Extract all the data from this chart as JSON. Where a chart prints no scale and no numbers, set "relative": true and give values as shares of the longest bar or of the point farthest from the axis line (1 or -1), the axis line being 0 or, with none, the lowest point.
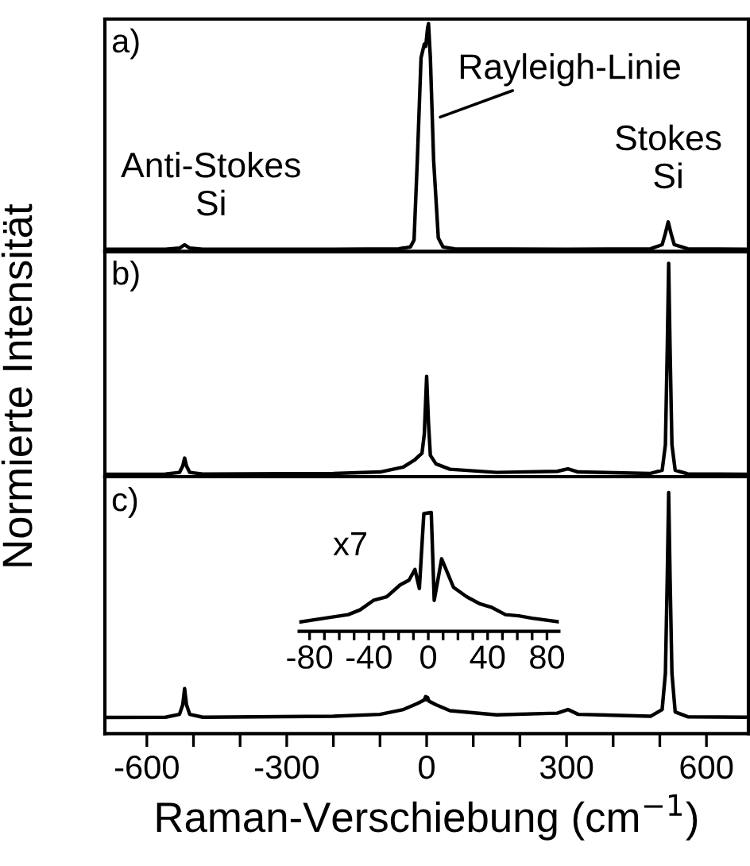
{
  "chart_data": [
    {
      "type": "line",
      "relative": true,
      "xlim": [
        -690,
        690
      ],
      "tick_labels": false,
      "annotations": [
        "a)",
        {
          "text": "Anti-Stokes\nSi",
          "x": -519,
          "y": 0.03
        },
        {
          "text": "Rayleigh-Linie",
          "x": 29,
          "y": 0.59
        },
        {
          "text": "Stokes\nSi",
          "x": 518,
          "y": 0.13
        }
      ],
      "series": [
        {
          "color": "#000000",
          "x": [
            -690,
            -560,
            -530,
            -519,
            -508,
            -480,
            -200,
            -60,
            -35,
            -27,
            -20,
            -12,
            -5,
            -2,
            2,
            4,
            8,
            15,
            25,
            35,
            60,
            300,
            480,
            505,
            512,
            518,
            524,
            531,
            560,
            690
          ],
          "values": [
            0.01,
            0.01,
            0.015,
            0.03,
            0.015,
            0.01,
            0.01,
            0.012,
            0.02,
            0.05,
            0.4,
            0.85,
            0.91,
            0.9,
            0.98,
            1.0,
            0.85,
            0.4,
            0.06,
            0.02,
            0.012,
            0.01,
            0.012,
            0.03,
            0.08,
            0.13,
            0.08,
            0.03,
            0.012,
            0.01
          ]
        }
      ]
    },
    {
      "type": "line",
      "relative": true,
      "xlim": [
        -690,
        690
      ],
      "tick_labels": false,
      "ylabel": "Normierte Intensität",
      "annotations": [
        "b)"
      ],
      "series": [
        {
          "color": "#000000",
          "x": [
            -690,
            -560,
            -530,
            -523,
            -519,
            -515,
            -508,
            -480,
            -200,
            -100,
            -50,
            -25,
            -10,
            -5,
            0,
            4,
            8,
            20,
            50,
            150,
            280,
            303,
            325,
            480,
            505,
            512,
            516,
            519,
            522,
            526,
            533,
            560,
            690
          ],
          "values": [
            0.011,
            0.012,
            0.02,
            0.05,
            0.087,
            0.05,
            0.02,
            0.012,
            0.015,
            0.022,
            0.045,
            0.08,
            0.11,
            0.2,
            0.47,
            0.25,
            0.1,
            0.06,
            0.035,
            0.02,
            0.025,
            0.037,
            0.022,
            0.015,
            0.03,
            0.15,
            0.6,
            1.0,
            0.6,
            0.15,
            0.03,
            0.013,
            0.011
          ]
        }
      ]
    },
    {
      "type": "line",
      "relative": true,
      "xlim": [
        -690,
        690
      ],
      "tick_labels": "x",
      "xlabel": "Raman-Verschiebung (cm$^{−1}$)",
      "annotations": [
        "c)"
      ],
      "xticks": [
        -600,
        {
          "value": -500,
          "label": null
        },
        {
          "value": -400,
          "label": null
        },
        -300,
        {
          "value": -200,
          "label": null
        },
        {
          "value": -100,
          "label": null
        },
        0,
        {
          "value": 100,
          "label": null
        },
        {
          "value": 200,
          "label": null
        },
        300,
        {
          "value": 400,
          "label": null
        },
        {
          "value": 500,
          "label": null
        },
        600
      ],
      "series": [
        {
          "color": "#000000",
          "x": [
            -690,
            -560,
            -530,
            -523,
            -519,
            -515,
            -508,
            -480,
            -200,
            -100,
            -50,
            -20,
            -5,
            -2,
            0,
            2,
            5,
            20,
            50,
            150,
            280,
            303,
            325,
            480,
            505,
            512,
            516,
            519,
            522,
            526,
            533,
            560,
            690
          ],
          "values": [
            0.067,
            0.068,
            0.08,
            0.12,
            0.187,
            0.12,
            0.08,
            0.068,
            0.072,
            0.08,
            0.1,
            0.125,
            0.14,
            0.154,
            0.14,
            0.15,
            0.135,
            0.12,
            0.095,
            0.078,
            0.085,
            0.1,
            0.08,
            0.072,
            0.1,
            0.25,
            0.65,
            1.0,
            0.65,
            0.25,
            0.09,
            0.07,
            0.068
          ]
        }
      ]
    },
    {
      "type": "line",
      "relative": true,
      "xlim": [
        -87,
        88
      ],
      "tick_labels": "x",
      "annotations": [
        "x7"
      ],
      "xticks": [
        -80,
        {
          "value": -70,
          "label": null
        },
        {
          "value": -60,
          "label": null
        },
        {
          "value": -50,
          "label": null
        },
        -40,
        {
          "value": -30,
          "label": null
        },
        {
          "value": -20,
          "label": null
        },
        {
          "value": -10,
          "label": null
        },
        0,
        {
          "value": 10,
          "label": null
        },
        {
          "value": 20,
          "label": null
        },
        {
          "value": 30,
          "label": null
        },
        40,
        {
          "value": 50,
          "label": null
        },
        {
          "value": 60,
          "label": null
        },
        {
          "value": 70,
          "label": null
        },
        80
      ],
      "series": [
        {
          "color": "#000000",
          "x": [
            -86,
            -70,
            -54,
            -46,
            -37,
            -28,
            -19,
            -13,
            -9,
            -6,
            -3,
            2,
            4,
            9,
            17,
            26,
            35,
            43,
            52,
            61,
            70,
            88
          ],
          "values": [
            0.08,
            0.11,
            0.14,
            0.18,
            0.26,
            0.29,
            0.39,
            0.43,
            0.52,
            0.36,
            0.99,
            1.0,
            0.26,
            0.61,
            0.37,
            0.29,
            0.23,
            0.2,
            0.14,
            0.13,
            0.11,
            0.08
          ]
        }
      ]
    }
  ]
}
